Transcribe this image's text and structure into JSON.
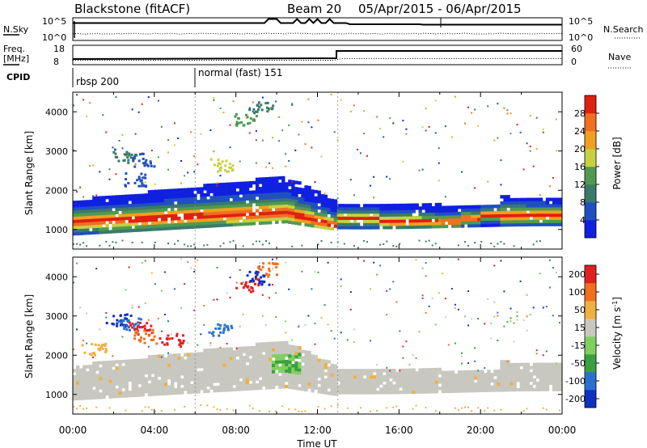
{
  "header": {
    "station": "Blackstone (fitACF)",
    "beam": "Beam 20",
    "dates": "05/Apr/2015 - 06/Apr/2015"
  },
  "top_panels": {
    "nsky_label": "N.Sky",
    "nsky_ticks": [
      "10^5",
      "10^0"
    ],
    "nsearch_label": "N.Search",
    "nsearch_ticks": [
      "10^5",
      "10^0"
    ],
    "freq_label_1": "Freq.",
    "freq_label_2": "[MHz]",
    "freq_ticks": [
      "18",
      "8"
    ],
    "nave_label": "Nave",
    "nave_ticks": [
      "60",
      "0"
    ],
    "cpid_label": "CPID",
    "cpid_modes": [
      {
        "label": "rbsp 200",
        "start_hour": 0
      },
      {
        "label": "normal (fast) 151",
        "start_hour": 6
      }
    ]
  },
  "chart_data": [
    {
      "type": "heatmap",
      "name": "power-panel",
      "ylabel": "Slant Range [km]",
      "xlabel": "Time UT",
      "xlim_hours": [
        0,
        24
      ],
      "ylim": [
        500,
        4500
      ],
      "yticks": [
        1000,
        2000,
        3000,
        4000
      ],
      "colorbar": {
        "label": "Power [dB]",
        "ticks": [
          "4",
          "8",
          "12",
          "16",
          "20",
          "24",
          "28"
        ],
        "colors": [
          "#1020e0",
          "#2050c0",
          "#3a7a6a",
          "#4f9a50",
          "#c8d040",
          "#f0a020",
          "#f07020",
          "#e02010"
        ]
      },
      "bands": [
        {
          "t0": 0,
          "t1": 10.5,
          "r0": 850,
          "r1": 2300,
          "peak_range": 1150,
          "note": "main scatter band rising"
        },
        {
          "t0": 10.5,
          "t1": 13,
          "r0": 900,
          "r1": 2000,
          "peak_range": 1050,
          "note": "descending band"
        },
        {
          "t0": 13,
          "t1": 24,
          "r0": 1000,
          "r1": 1900,
          "peak_range": 1250,
          "note": "second half band"
        }
      ]
    },
    {
      "type": "heatmap",
      "name": "velocity-panel",
      "ylabel": "Slant Range [km]",
      "xlabel": "Time UT",
      "xlim_hours": [
        0,
        24
      ],
      "ylim": [
        500,
        4500
      ],
      "yticks": [
        1000,
        2000,
        3000,
        4000
      ],
      "colorbar": {
        "label": "Velocity [m s-1]",
        "ticks": [
          "200",
          "100",
          "50",
          "15",
          "-15",
          "-50",
          "-100",
          "-200"
        ],
        "colors": [
          "#1030c0",
          "#2a70d0",
          "#3aa040",
          "#80d060",
          "#c8c8c0",
          "#f0b040",
          "#f07020",
          "#e02020"
        ]
      }
    }
  ],
  "xaxis": {
    "ticks": [
      "00:00",
      "04:00",
      "08:00",
      "12:00",
      "16:00",
      "20:00",
      "00:00"
    ],
    "label": "Time UT"
  }
}
